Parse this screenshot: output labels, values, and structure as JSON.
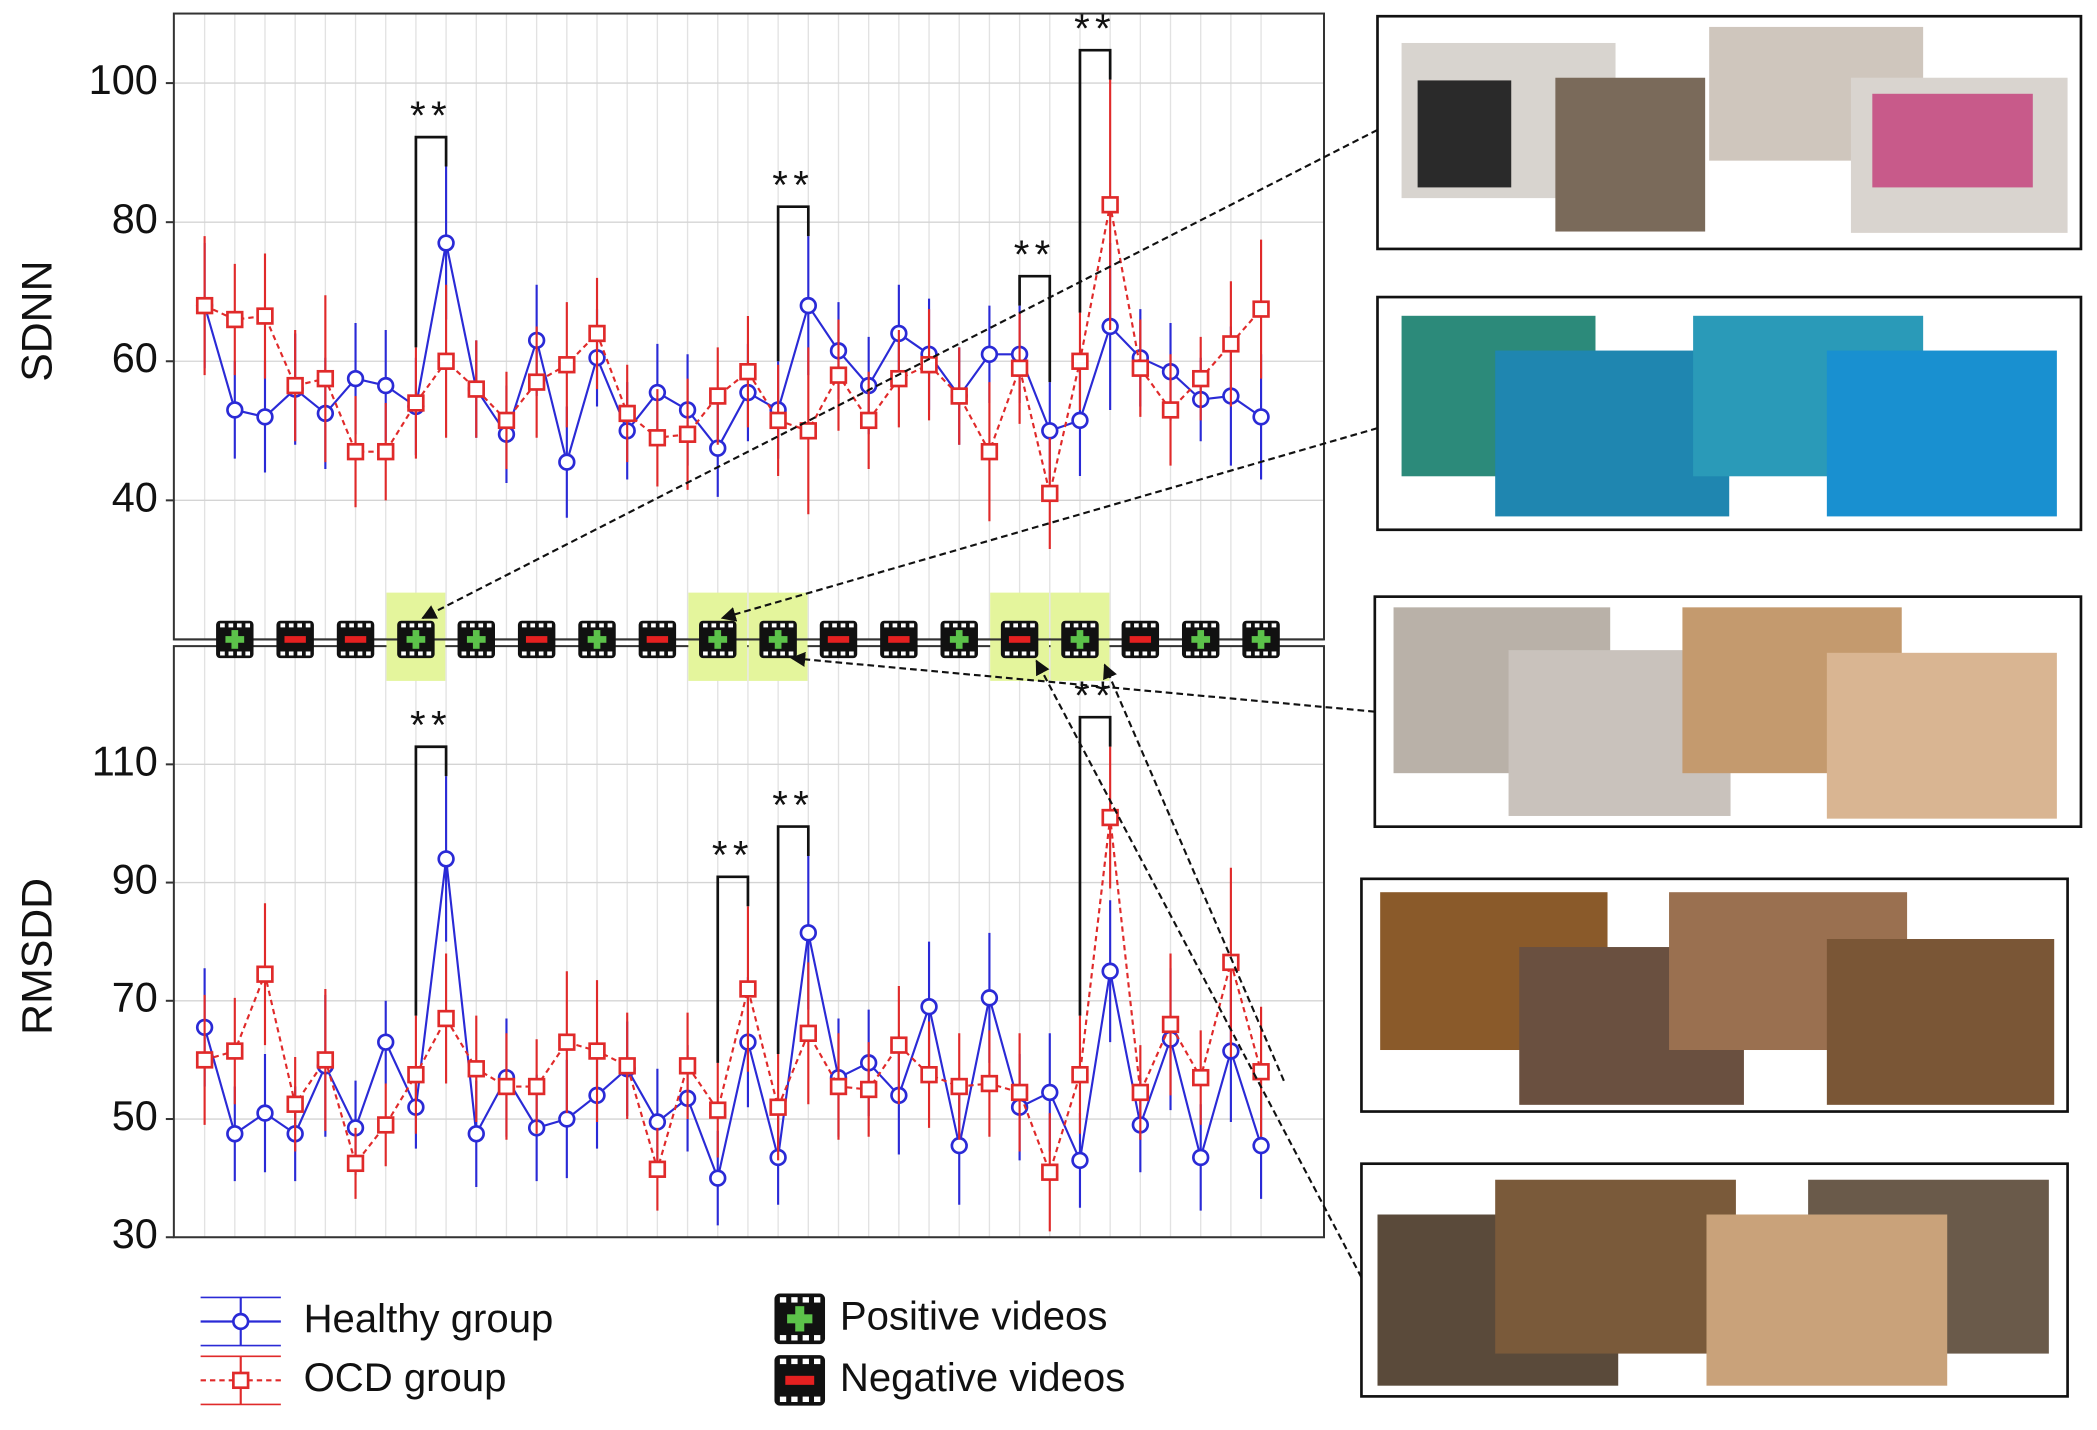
{
  "chart_data": [
    {
      "type": "line",
      "y_label": "SDNN",
      "categories": [
        null,
        null,
        null,
        null,
        null,
        null,
        null,
        null,
        null,
        null,
        null,
        null,
        null,
        null,
        null,
        null,
        null,
        null,
        null,
        null,
        null,
        null,
        null,
        null,
        null,
        null,
        null,
        null,
        null,
        null,
        null,
        null,
        null,
        null,
        null,
        null
      ],
      "ylim": [
        20,
        110
      ],
      "yticks": [
        40,
        60,
        80,
        100
      ],
      "grid": true,
      "series": [
        {
          "name": "Healthy group",
          "color": "#2a2ad6",
          "marker": "circle",
          "dash": false,
          "values": [
            68,
            53,
            52,
            56,
            52.5,
            57.5,
            56.5,
            53.5,
            77,
            56,
            49.5,
            63,
            45.5,
            60.5,
            50,
            55.5,
            53,
            47.5,
            55.5,
            53,
            68,
            61.5,
            56.5,
            64,
            61,
            55,
            61,
            61,
            50,
            51.5,
            65,
            60.5,
            58.5,
            54.5,
            55,
            52
          ],
          "errors": [
            9,
            7,
            8,
            8,
            8,
            8,
            8,
            7,
            11,
            7,
            7,
            8,
            8,
            7,
            7,
            7,
            8,
            7,
            7,
            7,
            10,
            7,
            7,
            7,
            8,
            7,
            7,
            7,
            7,
            8,
            12,
            7,
            7,
            6,
            10,
            9
          ]
        },
        {
          "name": "OCD group",
          "color": "#e02a2a",
          "marker": "square",
          "dash": true,
          "values": [
            68,
            66,
            66.5,
            56.5,
            57.5,
            47,
            47,
            54,
            60,
            56,
            51.5,
            57,
            59.5,
            64,
            52.5,
            49,
            49.5,
            55,
            58.5,
            51.5,
            50,
            58,
            51.5,
            57.5,
            59.5,
            55,
            47,
            59,
            41,
            60,
            82.5,
            59,
            53,
            57.5,
            62.5,
            67.5
          ],
          "errors": [
            10,
            8,
            9,
            8,
            12,
            8,
            7,
            8,
            11,
            7,
            7,
            8,
            9,
            8,
            7,
            7,
            8,
            7,
            8,
            8,
            12,
            8,
            7,
            7,
            8,
            7,
            10,
            8,
            8,
            7,
            18,
            7,
            8,
            6,
            9,
            10
          ]
        }
      ],
      "annotations": [
        {
          "text": "**",
          "between": [
            7,
            8
          ]
        },
        {
          "text": "**",
          "between": [
            19,
            20
          ]
        },
        {
          "text": "**",
          "between": [
            27,
            28
          ]
        },
        {
          "text": "**",
          "between": [
            29,
            30
          ]
        }
      ]
    },
    {
      "type": "line",
      "y_label": "RMSDD",
      "categories": [
        null,
        null,
        null,
        null,
        null,
        null,
        null,
        null,
        null,
        null,
        null,
        null,
        null,
        null,
        null,
        null,
        null,
        null,
        null,
        null,
        null,
        null,
        null,
        null,
        null,
        null,
        null,
        null,
        null,
        null,
        null,
        null,
        null,
        null,
        null,
        null
      ],
      "ylim": [
        30,
        130
      ],
      "yticks": [
        30,
        50,
        70,
        90,
        110
      ],
      "grid": true,
      "series": [
        {
          "color": "#2a2ad6",
          "marker": "circle",
          "dash": false,
          "values": [
            65.5,
            47.5,
            51,
            47.5,
            59,
            48.5,
            63,
            52,
            94,
            47.5,
            57,
            48.5,
            50,
            54,
            58.5,
            49.5,
            53.5,
            40,
            63,
            43.5,
            81.5,
            57,
            59.5,
            54,
            69,
            45.5,
            70.5,
            52,
            54.5,
            43,
            75,
            49,
            63.5,
            43.5,
            61.5,
            45.5
          ],
          "errors": [
            10,
            8,
            10,
            8,
            12,
            8,
            7,
            7,
            14,
            9,
            10,
            9,
            10,
            9,
            8,
            9,
            9,
            8,
            11,
            8,
            13,
            10,
            9,
            10,
            11,
            10,
            11,
            9,
            10,
            8,
            12,
            8,
            12,
            9,
            12,
            9
          ]
        },
        {
          "color": "#e02a2a",
          "marker": "square",
          "dash": true,
          "values": [
            60,
            61.5,
            74.5,
            52.5,
            60,
            42.5,
            49,
            57.5,
            67,
            58.5,
            55.5,
            55.5,
            63,
            61.5,
            59,
            41.5,
            59,
            51.5,
            72,
            52,
            64.5,
            55.5,
            55,
            62.5,
            57.5,
            55.5,
            56,
            54.5,
            41,
            57.5,
            101,
            54.5,
            66,
            57,
            76.5,
            58
          ],
          "errors": [
            11,
            9,
            12,
            8,
            12,
            6,
            7,
            10,
            11,
            9,
            9,
            8,
            12,
            12,
            9,
            7,
            9,
            8,
            14,
            9,
            12,
            9,
            8,
            10,
            9,
            9,
            9,
            10,
            10,
            10,
            12,
            8,
            12,
            8,
            16,
            11
          ]
        }
      ],
      "annotations": [
        {
          "text": "**",
          "between": [
            7,
            8
          ]
        },
        {
          "text": "**",
          "between": [
            17,
            18
          ]
        },
        {
          "text": "**",
          "between": [
            19,
            20
          ]
        },
        {
          "text": "**",
          "between": [
            29,
            30
          ]
        }
      ]
    }
  ],
  "videos": {
    "types": [
      "positive",
      "negative",
      "negative",
      "positive",
      "positive",
      "negative",
      "positive",
      "negative",
      "positive",
      "positive",
      "negative",
      "negative",
      "positive",
      "negative",
      "positive",
      "negative",
      "positive",
      "positive"
    ],
    "highlighted": [
      3,
      8,
      9,
      13,
      14
    ]
  },
  "video_legend": {
    "positive": "Positive videos",
    "negative": "Negative videos"
  }
}
